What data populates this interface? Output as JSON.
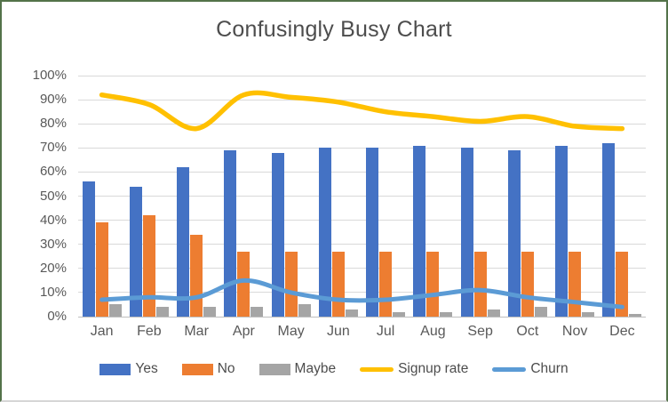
{
  "window": {
    "border_color": "#53734a",
    "background": "#ffffff"
  },
  "chart_data": {
    "type": "combo",
    "title": "Confusingly Busy Chart",
    "title_color": "#4d4d4d",
    "categories": [
      "Jan",
      "Feb",
      "Mar",
      "Apr",
      "May",
      "Jun",
      "Jul",
      "Aug",
      "Sep",
      "Oct",
      "Nov",
      "Dec"
    ],
    "series": [
      {
        "name": "Yes",
        "type": "bar",
        "color": "#4472C4",
        "values": [
          56,
          54,
          62,
          69,
          68,
          70,
          70,
          71,
          70,
          69,
          71,
          72
        ]
      },
      {
        "name": "No",
        "type": "bar",
        "color": "#ED7D31",
        "values": [
          39,
          42,
          34,
          27,
          27,
          27,
          27,
          27,
          27,
          27,
          27,
          27
        ]
      },
      {
        "name": "Maybe",
        "type": "bar",
        "color": "#A5A5A5",
        "values": [
          5,
          4,
          4,
          4,
          5,
          3,
          2,
          2,
          3,
          4,
          2,
          1
        ]
      },
      {
        "name": "Signup rate",
        "type": "line",
        "color": "#FFC000",
        "values": [
          92,
          88,
          78,
          92,
          91,
          89,
          85,
          83,
          81,
          83,
          79,
          78
        ]
      },
      {
        "name": "Churn",
        "type": "line",
        "color": "#5B9BD5",
        "values": [
          7,
          8,
          8,
          15,
          10,
          7,
          7,
          9,
          11,
          8,
          6,
          4
        ]
      }
    ],
    "y_axis": {
      "min": 0,
      "max": 100,
      "step": 10,
      "format": "percent",
      "tick_labels": [
        "0%",
        "10%",
        "20%",
        "30%",
        "40%",
        "50%",
        "60%",
        "70%",
        "80%",
        "90%",
        "100%"
      ],
      "label_color": "#595959"
    },
    "grid": true,
    "grid_color": "#d9d9d9",
    "axis_line_color": "#bfbfbf",
    "legend_position": "bottom"
  }
}
